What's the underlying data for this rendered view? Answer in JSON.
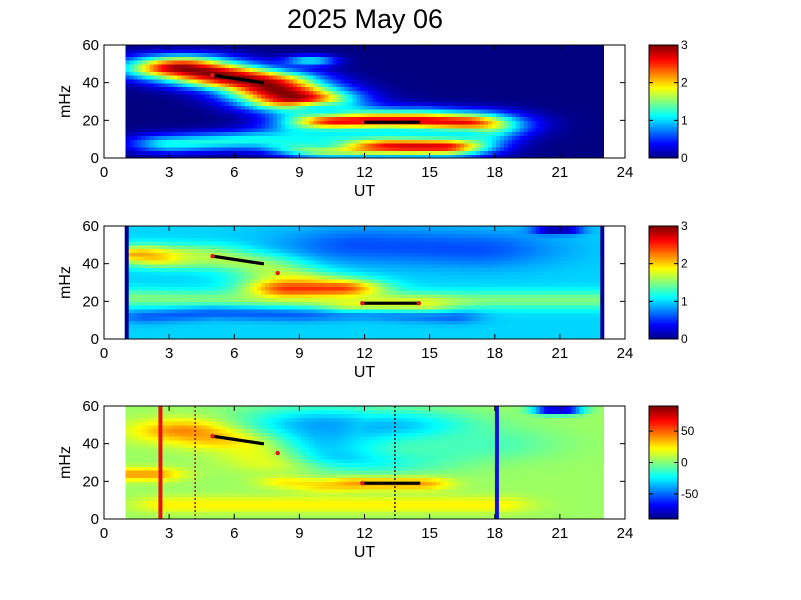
{
  "title": "2025 May 06",
  "chart_data": [
    {
      "type": "heatmap",
      "xlabel": "UT",
      "ylabel": "mHz",
      "xlim": [
        0,
        24
      ],
      "ylim": [
        0,
        60
      ],
      "xticks": [
        0,
        3,
        6,
        9,
        12,
        15,
        18,
        21,
        24
      ],
      "yticks": [
        0,
        20,
        40,
        60
      ],
      "colorbar": {
        "range": [
          0,
          3
        ],
        "ticks": [
          0,
          1,
          2,
          3
        ],
        "colormap": "jet"
      },
      "data_extent_ut": [
        1,
        23
      ],
      "background_level": 0,
      "features": [
        {
          "kind": "blob",
          "path_ut": [
            3.6,
            5,
            7.3,
            8.8
          ],
          "path_mhz": [
            48,
            45,
            40,
            32
          ],
          "width_mhz": 9,
          "level": 3
        },
        {
          "kind": "blob",
          "path_ut": [
            10.9,
            12.5,
            14.5,
            16.4
          ],
          "path_mhz": [
            19,
            19,
            19,
            18
          ],
          "width_mhz": 9,
          "level": 3
        },
        {
          "kind": "blob",
          "path_ut": [
            10.4,
            13.2,
            15.5
          ],
          "path_mhz": [
            7,
            7,
            7
          ],
          "width_mhz": 8,
          "level": 2.9
        },
        {
          "kind": "blob",
          "path_ut": [
            3.2,
            5,
            7,
            9,
            10
          ],
          "path_mhz": [
            8,
            9,
            10,
            9,
            8
          ],
          "width_mhz": 7,
          "level": 1.2
        },
        {
          "kind": "blob",
          "path_ut": [
            9.8,
            13,
            16.5
          ],
          "path_mhz": [
            13,
            14,
            13
          ],
          "width_mhz": 6,
          "level": 1.1
        },
        {
          "kind": "blob",
          "path_ut": [
            10,
            10.2
          ],
          "path_mhz": [
            26,
            26
          ],
          "width_mhz": 5,
          "level": 1.1
        },
        {
          "kind": "blob",
          "path_ut": [
            9.4,
            9.6
          ],
          "path_mhz": [
            52,
            52
          ],
          "width_mhz": 4,
          "level": 1.1
        }
      ],
      "tracks": [
        {
          "ut": [
            5.0,
            7.3
          ],
          "mhz": [
            44,
            40
          ]
        },
        {
          "ut": [
            11.9,
            14.5
          ],
          "mhz": [
            19,
            19
          ]
        }
      ],
      "red_markers": [
        {
          "ut": 5.0,
          "mhz": 44
        },
        {
          "ut": 11.9,
          "mhz": 19
        }
      ]
    },
    {
      "type": "heatmap",
      "xlabel": "UT",
      "ylabel": "mHz",
      "xlim": [
        0,
        24
      ],
      "ylim": [
        0,
        60
      ],
      "xticks": [
        0,
        3,
        6,
        9,
        12,
        15,
        18,
        21,
        24
      ],
      "yticks": [
        0,
        20,
        40,
        60
      ],
      "colorbar": {
        "range": [
          0,
          3
        ],
        "ticks": [
          0,
          1,
          2,
          3
        ],
        "colormap": "jet"
      },
      "data_extent_ut": [
        1,
        23
      ],
      "background_level": 1.0,
      "features": [
        {
          "kind": "blob",
          "path_ut": [
            1.5,
            6,
            12,
            18,
            22.5
          ],
          "path_mhz": [
            22,
            21,
            20,
            21,
            21
          ],
          "width_mhz": 7,
          "level": 1.5
        },
        {
          "kind": "blob",
          "path_ut": [
            2,
            5,
            9,
            12,
            16
          ],
          "path_mhz": [
            12,
            14,
            13,
            14,
            12
          ],
          "width_mhz": 5,
          "level": 0.65
        },
        {
          "kind": "blob",
          "path_ut": [
            1.8,
            2.6
          ],
          "path_mhz": [
            45,
            44
          ],
          "width_mhz": 7,
          "level": 2.2
        },
        {
          "kind": "blob",
          "path_ut": [
            5,
            7.3,
            8.8
          ],
          "path_mhz": [
            44,
            40,
            32
          ],
          "width_mhz": 8,
          "level": 1.7
        },
        {
          "kind": "blob",
          "path_ut": [
            8.6,
            10.8
          ],
          "path_mhz": [
            27,
            27
          ],
          "width_mhz": 7,
          "level": 2.5
        },
        {
          "kind": "blob",
          "path_ut": [
            11.6,
            14.6
          ],
          "path_mhz": [
            19,
            19
          ],
          "width_mhz": 6,
          "level": 1.8
        },
        {
          "kind": "blob",
          "path_ut": [
            12,
            17
          ],
          "path_mhz": [
            50,
            48
          ],
          "width_mhz": 14,
          "level": 0.6
        },
        {
          "kind": "blob",
          "path_ut": [
            20.6,
            21.2
          ],
          "path_mhz": [
            58,
            58
          ],
          "width_mhz": 3,
          "level": 0.0
        }
      ],
      "tracks": [
        {
          "ut": [
            5.0,
            7.3
          ],
          "mhz": [
            44,
            40
          ]
        },
        {
          "ut": [
            11.9,
            14.5
          ],
          "mhz": [
            19,
            19
          ]
        }
      ],
      "red_markers": [
        {
          "ut": 5.0,
          "mhz": 44
        },
        {
          "ut": 8.0,
          "mhz": 35
        },
        {
          "ut": 11.9,
          "mhz": 19
        },
        {
          "ut": 14.5,
          "mhz": 19
        }
      ]
    },
    {
      "type": "heatmap",
      "xlabel": "UT",
      "ylabel": "mHz",
      "xlim": [
        0,
        24
      ],
      "ylim": [
        0,
        60
      ],
      "xticks": [
        0,
        3,
        6,
        9,
        12,
        15,
        18,
        21,
        24
      ],
      "yticks": [
        0,
        20,
        40,
        60
      ],
      "colorbar": {
        "range": [
          -90,
          90
        ],
        "ticks": [
          50,
          0,
          -50
        ],
        "colormap": "jet"
      },
      "data_extent_ut": [
        1,
        23
      ],
      "background_level": 5,
      "features": [
        {
          "kind": "blob",
          "path_ut": [
            1.2,
            2.2
          ],
          "path_mhz": [
            24,
            24
          ],
          "width_mhz": 5,
          "level": 40
        },
        {
          "kind": "blob",
          "path_ut": [
            4,
            5.5,
            7.5,
            8.6
          ],
          "path_mhz": [
            47,
            44,
            40,
            32
          ],
          "width_mhz": 9,
          "level": 50
        },
        {
          "kind": "blob",
          "path_ut": [
            8.5,
            10
          ],
          "path_mhz": [
            20,
            18
          ],
          "width_mhz": 5,
          "level": 30
        },
        {
          "kind": "blob",
          "path_ut": [
            10.2,
            11.5,
            13
          ],
          "path_mhz": [
            50,
            35,
            48
          ],
          "width_mhz": 14,
          "level": -40
        },
        {
          "kind": "blob",
          "path_ut": [
            11.6,
            14.6
          ],
          "path_mhz": [
            19,
            19
          ],
          "width_mhz": 5,
          "level": 40
        },
        {
          "kind": "blob",
          "path_ut": [
            3,
            18
          ],
          "path_mhz": [
            8,
            8
          ],
          "width_mhz": 6,
          "level": 25
        },
        {
          "kind": "blob",
          "path_ut": [
            14.5,
            17.5
          ],
          "path_mhz": [
            38,
            40
          ],
          "width_mhz": 12,
          "level": -10
        },
        {
          "kind": "blob",
          "path_ut": [
            20.6,
            21.2
          ],
          "path_mhz": [
            58,
            58
          ],
          "width_mhz": 3,
          "level": -90
        }
      ],
      "tracks": [
        {
          "ut": [
            5.0,
            7.3
          ],
          "mhz": [
            44,
            40
          ]
        },
        {
          "ut": [
            11.9,
            14.5
          ],
          "mhz": [
            19,
            19
          ]
        }
      ],
      "red_markers": [
        {
          "ut": 5.0,
          "mhz": 44
        },
        {
          "ut": 8.0,
          "mhz": 35
        },
        {
          "ut": 11.9,
          "mhz": 19
        }
      ],
      "vlines": [
        {
          "ut": 2.6,
          "color": "#e81010",
          "style": "solid"
        },
        {
          "ut": 4.2,
          "color": "#9b1a1a",
          "style": "dotted"
        },
        {
          "ut": 13.4,
          "color": "#222222",
          "style": "dotted"
        },
        {
          "ut": 18.1,
          "color": "#1010d8",
          "style": "solid"
        }
      ]
    }
  ]
}
